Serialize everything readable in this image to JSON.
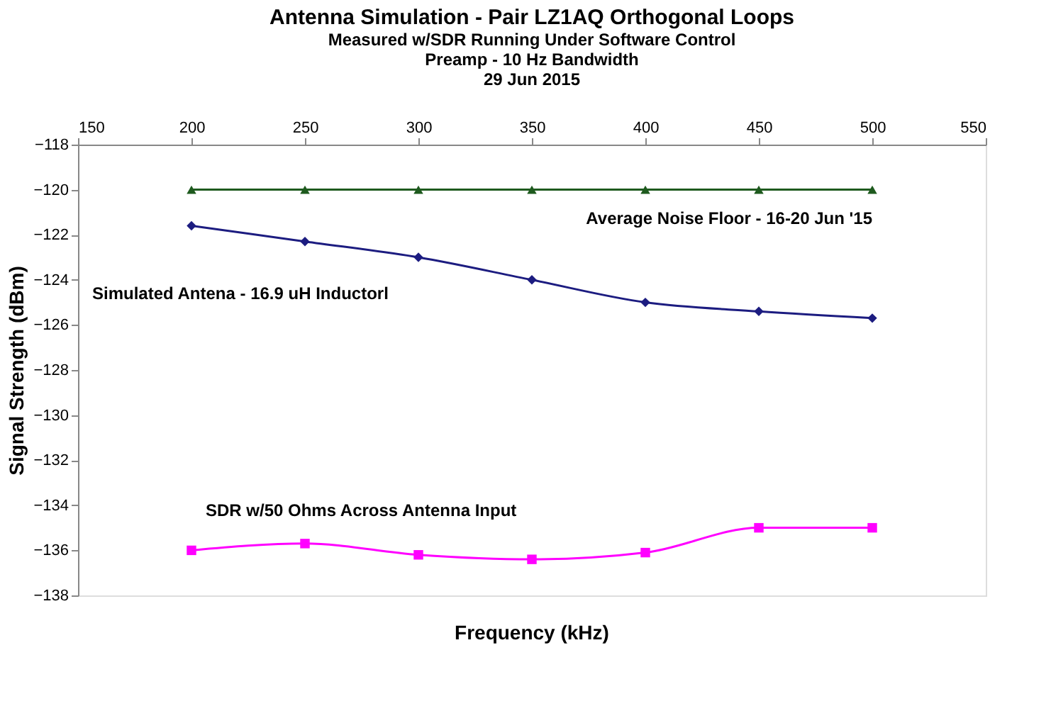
{
  "chart_data": {
    "type": "line",
    "title": "Antenna Simulation - Pair LZ1AQ Orthogonal Loops",
    "subtitle": [
      "Measured w/SDR Running Under Software Control",
      "Preamp - 10 Hz Bandwidth",
      "29 Jun 2015"
    ],
    "xlabel": "Frequency (kHz)",
    "ylabel": "Signal Strength (dBm)",
    "x": [
      200,
      250,
      300,
      350,
      400,
      450,
      500
    ],
    "xlim": [
      150,
      550
    ],
    "xticks": [
      150,
      200,
      250,
      300,
      350,
      400,
      450,
      500,
      550
    ],
    "ylim": [
      -138,
      -118
    ],
    "yticks": [
      -138,
      -136,
      -134,
      -132,
      -130,
      -128,
      -126,
      -124,
      -122,
      -120,
      -118
    ],
    "grid": false,
    "series": [
      {
        "name": "Average Noise Floor - 16-20 Jun '15",
        "color": "#1e5a1e",
        "marker": "triangle",
        "values": [
          -120,
          -120,
          -120,
          -120,
          -120,
          -120,
          -120
        ]
      },
      {
        "name": "Simulated Antena - 16.9 uH Inductorl",
        "color": "#1c1c80",
        "marker": "diamond",
        "values": [
          -121.6,
          -122.3,
          -123,
          -124,
          -125,
          -125.4,
          -125.7
        ]
      },
      {
        "name": "SDR w/50 Ohms Across Antenna Input",
        "color": "#ff00ff",
        "marker": "square",
        "values": [
          -136,
          -135.7,
          -136.2,
          -136.4,
          -136.1,
          -135,
          -135
        ]
      }
    ]
  }
}
